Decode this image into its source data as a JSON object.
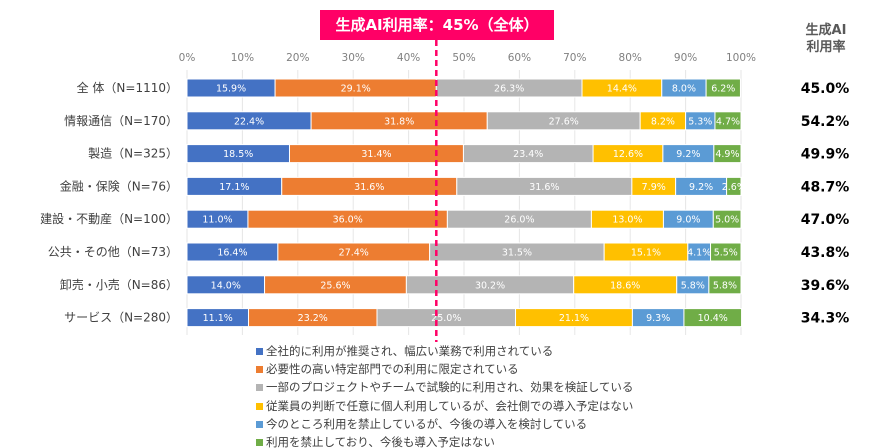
{
  "banner": "生成AI利用率：45%（全体）",
  "rate_header": {
    "line1": "生成AI",
    "line2": "利用率"
  },
  "chart_data": {
    "type": "bar",
    "orientation": "horizontal-stacked-100",
    "xlim": [
      0,
      100
    ],
    "x_ticks": [
      "0%",
      "10%",
      "20%",
      "30%",
      "40%",
      "50%",
      "60%",
      "70%",
      "80%",
      "90%",
      "100%"
    ],
    "grid": true,
    "reference_line": {
      "value": 45,
      "style": "dashed",
      "color": "#ff0066"
    },
    "legend_position": "bottom",
    "categories": [
      "全 体（N=1110）",
      "情報通信（N=170）",
      "製造（N=325）",
      "金融・保険（N=76）",
      "建設・不動産（N=100）",
      "公共・その他（N=73）",
      "卸売・小売（N=86）",
      "サービス（N=280）"
    ],
    "series": [
      {
        "name": "全社的に利用が推奨され、幅広い業務で利用されている",
        "color": "#4472c4",
        "values": [
          15.9,
          22.4,
          18.5,
          17.1,
          11.0,
          16.4,
          14.0,
          11.1
        ]
      },
      {
        "name": "必要性の高い特定部門での利用に限定されている",
        "color": "#ed7d31",
        "values": [
          29.1,
          31.8,
          31.4,
          31.6,
          36.0,
          27.4,
          25.6,
          23.2
        ]
      },
      {
        "name": "一部のプロジェクトやチームで試験的に利用され、効果を検証している",
        "color": "#b4b4b4",
        "values": [
          26.3,
          27.6,
          23.4,
          31.6,
          26.0,
          31.5,
          30.2,
          25.0
        ]
      },
      {
        "name": "従業員の判断で任意に個人利用しているが、会社側での導入予定はない",
        "color": "#ffc000",
        "values": [
          14.4,
          8.2,
          12.6,
          7.9,
          13.0,
          15.1,
          18.6,
          21.1
        ]
      },
      {
        "name": "今のところ利用を禁止しているが、今後の導入を検討している",
        "color": "#5b9bd5",
        "values": [
          8.0,
          5.3,
          9.2,
          9.2,
          9.0,
          4.1,
          5.8,
          9.3
        ]
      },
      {
        "name": "利用を禁止しており、今後も導入予定はない",
        "color": "#70ad47",
        "values": [
          6.2,
          4.7,
          4.9,
          2.6,
          5.0,
          5.5,
          5.8,
          10.4
        ]
      }
    ],
    "usage_rate": [
      "45.0%",
      "54.2%",
      "49.9%",
      "48.7%",
      "47.0%",
      "43.8%",
      "39.6%",
      "34.3%"
    ]
  }
}
